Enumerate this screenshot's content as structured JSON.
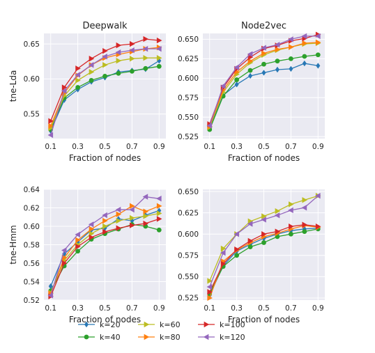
{
  "figure": {
    "row_labels": [
      "tne-Lda",
      "tne-Hmm"
    ],
    "col_titles": [
      "Deepwalk",
      "Node2vec"
    ],
    "xlabel": "Fraction of nodes"
  },
  "series_styles": [
    {
      "name": "k=20",
      "color": "#2878b5",
      "marker": "diamond"
    },
    {
      "name": "k=40",
      "color": "#2ca02c",
      "marker": "circle"
    },
    {
      "name": "k=60",
      "color": "#bcbd22",
      "marker": "triangle-right"
    },
    {
      "name": "k=80",
      "color": "#ff7f0e",
      "marker": "triangle-right"
    },
    {
      "name": "k=100",
      "color": "#d62728",
      "marker": "triangle-right"
    },
    {
      "name": "k=120",
      "color": "#9467bd",
      "marker": "triangle-left"
    }
  ],
  "legend": {
    "placement": "bottom-center",
    "columns": [
      [
        "k=20",
        "k=40"
      ],
      [
        "k=60",
        "k=80"
      ],
      [
        "k=100",
        "k=120"
      ]
    ]
  },
  "chart_data": [
    {
      "type": "line",
      "title": "Deepwalk",
      "ylabel": "tne-Lda",
      "xlabel": "Fraction of nodes",
      "xlim": [
        0.05,
        0.95
      ],
      "ylim": [
        0.515,
        0.665
      ],
      "xticks": [
        0.1,
        0.3,
        0.5,
        0.7,
        0.9
      ],
      "xtick_labels": [
        "0.1",
        "0.3",
        "0.5",
        "0.7",
        "0.9"
      ],
      "yticks": [
        0.55,
        0.6,
        0.65
      ],
      "ytick_labels": [
        "0.55",
        "0.60",
        "0.65"
      ],
      "grid": true,
      "x": [
        0.1,
        0.2,
        0.3,
        0.4,
        0.5,
        0.6,
        0.7,
        0.8,
        0.9
      ],
      "series": [
        {
          "name": "k=20",
          "values": [
            0.526,
            0.57,
            0.585,
            0.596,
            0.602,
            0.61,
            0.612,
            0.614,
            0.626
          ]
        },
        {
          "name": "k=40",
          "values": [
            0.528,
            0.573,
            0.588,
            0.598,
            0.604,
            0.608,
            0.611,
            0.615,
            0.618
          ]
        },
        {
          "name": "k=60",
          "values": [
            0.53,
            0.576,
            0.598,
            0.61,
            0.62,
            0.626,
            0.629,
            0.63,
            0.63
          ]
        },
        {
          "name": "k=80",
          "values": [
            0.533,
            0.58,
            0.605,
            0.62,
            0.63,
            0.635,
            0.639,
            0.643,
            0.645
          ]
        },
        {
          "name": "k=100",
          "values": [
            0.54,
            0.588,
            0.615,
            0.629,
            0.64,
            0.648,
            0.65,
            0.657,
            0.655
          ]
        },
        {
          "name": "k=120",
          "values": [
            0.52,
            0.583,
            0.606,
            0.62,
            0.632,
            0.638,
            0.641,
            0.643,
            0.643
          ]
        }
      ]
    },
    {
      "type": "line",
      "title": "Node2vec",
      "ylabel": "",
      "xlabel": "Fraction of nodes",
      "xlim": [
        0.05,
        0.95
      ],
      "ylim": [
        0.5225,
        0.6575
      ],
      "xticks": [
        0.1,
        0.3,
        0.5,
        0.7,
        0.9
      ],
      "xtick_labels": [
        "0.1",
        "0.3",
        "0.5",
        "0.7",
        "0.9"
      ],
      "yticks": [
        0.525,
        0.55,
        0.575,
        0.6,
        0.625,
        0.65
      ],
      "ytick_labels": [
        "0.525",
        "0.550",
        "0.575",
        "0.600",
        "0.625",
        "0.650"
      ],
      "grid": true,
      "x": [
        0.1,
        0.2,
        0.3,
        0.4,
        0.5,
        0.6,
        0.7,
        0.8,
        0.9
      ],
      "series": [
        {
          "name": "k=20",
          "values": [
            0.536,
            0.578,
            0.592,
            0.603,
            0.607,
            0.611,
            0.612,
            0.619,
            0.616
          ]
        },
        {
          "name": "k=40",
          "values": [
            0.534,
            0.577,
            0.598,
            0.61,
            0.618,
            0.622,
            0.625,
            0.628,
            0.63
          ]
        },
        {
          "name": "k=60",
          "values": [
            0.537,
            0.582,
            0.605,
            0.62,
            0.63,
            0.636,
            0.64,
            0.644,
            0.645
          ]
        },
        {
          "name": "k=80",
          "values": [
            0.538,
            0.585,
            0.608,
            0.622,
            0.632,
            0.637,
            0.64,
            0.645,
            0.646
          ]
        },
        {
          "name": "k=100",
          "values": [
            0.541,
            0.588,
            0.612,
            0.627,
            0.638,
            0.642,
            0.648,
            0.651,
            0.656
          ]
        },
        {
          "name": "k=120",
          "values": [
            0.539,
            0.59,
            0.614,
            0.631,
            0.639,
            0.643,
            0.65,
            0.654,
            0.654
          ]
        }
      ]
    },
    {
      "type": "line",
      "title": "",
      "ylabel": "tne-Hmm",
      "xlabel": "Fraction of nodes",
      "xlim": [
        0.05,
        0.95
      ],
      "ylim": [
        0.52,
        0.64
      ],
      "xticks": [
        0.1,
        0.3,
        0.5,
        0.7,
        0.9
      ],
      "xtick_labels": [
        "0.1",
        "0.3",
        "0.5",
        "0.7",
        "0.9"
      ],
      "yticks": [
        0.52,
        0.54,
        0.56,
        0.58,
        0.6,
        0.62,
        0.64
      ],
      "ytick_labels": [
        "0.52",
        "0.54",
        "0.56",
        "0.58",
        "0.60",
        "0.62",
        "0.64"
      ],
      "grid": true,
      "x": [
        0.1,
        0.2,
        0.3,
        0.4,
        0.5,
        0.6,
        0.7,
        0.8,
        0.9
      ],
      "series": [
        {
          "name": "k=20",
          "values": [
            0.535,
            0.57,
            0.583,
            0.596,
            0.598,
            0.608,
            0.606,
            0.612,
            0.617
          ]
        },
        {
          "name": "k=40",
          "values": [
            0.53,
            0.557,
            0.573,
            0.586,
            0.592,
            0.597,
            0.602,
            0.6,
            0.596
          ]
        },
        {
          "name": "k=60",
          "values": [
            0.528,
            0.563,
            0.58,
            0.592,
            0.6,
            0.606,
            0.609,
            0.611,
            0.614
          ]
        },
        {
          "name": "k=80",
          "values": [
            0.527,
            0.566,
            0.585,
            0.597,
            0.606,
            0.613,
            0.622,
            0.616,
            0.622
          ]
        },
        {
          "name": "k=100",
          "values": [
            0.524,
            0.56,
            0.578,
            0.588,
            0.594,
            0.598,
            0.601,
            0.603,
            0.608
          ]
        },
        {
          "name": "k=120",
          "values": [
            0.525,
            0.574,
            0.591,
            0.602,
            0.612,
            0.618,
            0.618,
            0.632,
            0.63
          ]
        }
      ]
    },
    {
      "type": "line",
      "title": "",
      "ylabel": "",
      "xlabel": "Fraction of nodes",
      "xlim": [
        0.05,
        0.95
      ],
      "ylim": [
        0.5225,
        0.6525
      ],
      "xticks": [
        0.1,
        0.3,
        0.5,
        0.7,
        0.9
      ],
      "xtick_labels": [
        "0.1",
        "0.3",
        "0.5",
        "0.7",
        "0.9"
      ],
      "yticks": [
        0.525,
        0.55,
        0.575,
        0.6,
        0.625,
        0.65
      ],
      "ytick_labels": [
        "0.525",
        "0.550",
        "0.575",
        "0.600",
        "0.625",
        "0.650"
      ],
      "grid": true,
      "x": [
        0.1,
        0.2,
        0.3,
        0.4,
        0.5,
        0.6,
        0.7,
        0.8,
        0.9
      ],
      "series": [
        {
          "name": "k=20",
          "values": [
            0.528,
            0.563,
            0.58,
            0.588,
            0.595,
            0.6,
            0.604,
            0.606,
            0.607
          ]
        },
        {
          "name": "k=40",
          "values": [
            0.53,
            0.562,
            0.575,
            0.585,
            0.59,
            0.597,
            0.6,
            0.603,
            0.606
          ]
        },
        {
          "name": "k=60",
          "values": [
            0.545,
            0.583,
            0.6,
            0.615,
            0.621,
            0.627,
            0.635,
            0.64,
            0.645
          ]
        },
        {
          "name": "k=80",
          "values": [
            0.525,
            0.568,
            0.581,
            0.59,
            0.597,
            0.601,
            0.606,
            0.61,
            0.608
          ]
        },
        {
          "name": "k=100",
          "values": [
            0.532,
            0.565,
            0.582,
            0.592,
            0.6,
            0.603,
            0.609,
            0.611,
            0.609
          ]
        },
        {
          "name": "k=120",
          "values": [
            0.538,
            0.578,
            0.6,
            0.612,
            0.617,
            0.622,
            0.628,
            0.631,
            0.645
          ]
        }
      ]
    }
  ]
}
